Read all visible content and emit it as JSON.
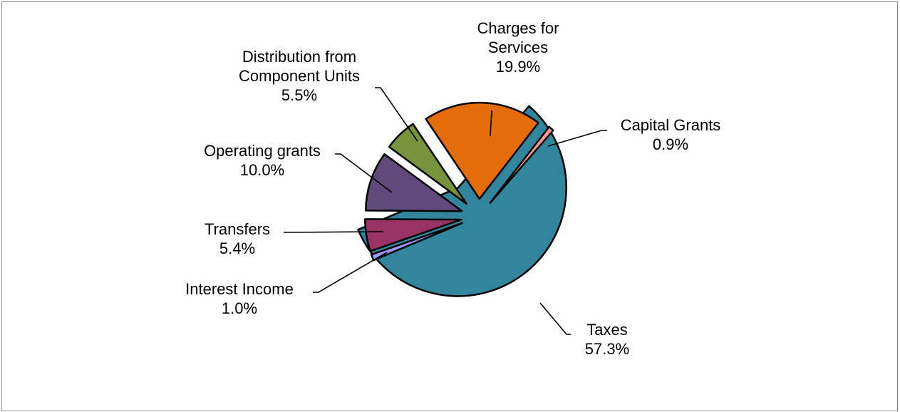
{
  "chart_data": {
    "type": "pie",
    "title": "",
    "slices": [
      {
        "name": "Taxes",
        "label_lines": [
          "Taxes"
        ],
        "percent_label": "57.3%",
        "value": 57.3,
        "color": "#31859c"
      },
      {
        "name": "Interest Income",
        "label_lines": [
          "Interest Income"
        ],
        "percent_label": "1.0%",
        "value": 1.0,
        "color": "#9999ff"
      },
      {
        "name": "Transfers",
        "label_lines": [
          "Transfers"
        ],
        "percent_label": "5.4%",
        "value": 5.4,
        "color": "#993366"
      },
      {
        "name": "Operating grants",
        "label_lines": [
          "Operating grants"
        ],
        "percent_label": "10.0%",
        "value": 10.0,
        "color": "#604a7b"
      },
      {
        "name": "Distribution from Component Units",
        "label_lines": [
          "Distribution from",
          "Component Units"
        ],
        "percent_label": "5.5%",
        "value": 5.5,
        "color": "#77933c"
      },
      {
        "name": "Charges for Services",
        "label_lines": [
          "Charges for",
          "Services"
        ],
        "percent_label": "19.9%",
        "value": 19.9,
        "color": "#e46c0a"
      },
      {
        "name": "Capital Grants",
        "label_lines": [
          "Capital Grants"
        ],
        "percent_label": "0.9%",
        "value": 0.9,
        "color": "#ff9999"
      }
    ],
    "legend": "none",
    "data_labels": "outside with leader lines"
  }
}
